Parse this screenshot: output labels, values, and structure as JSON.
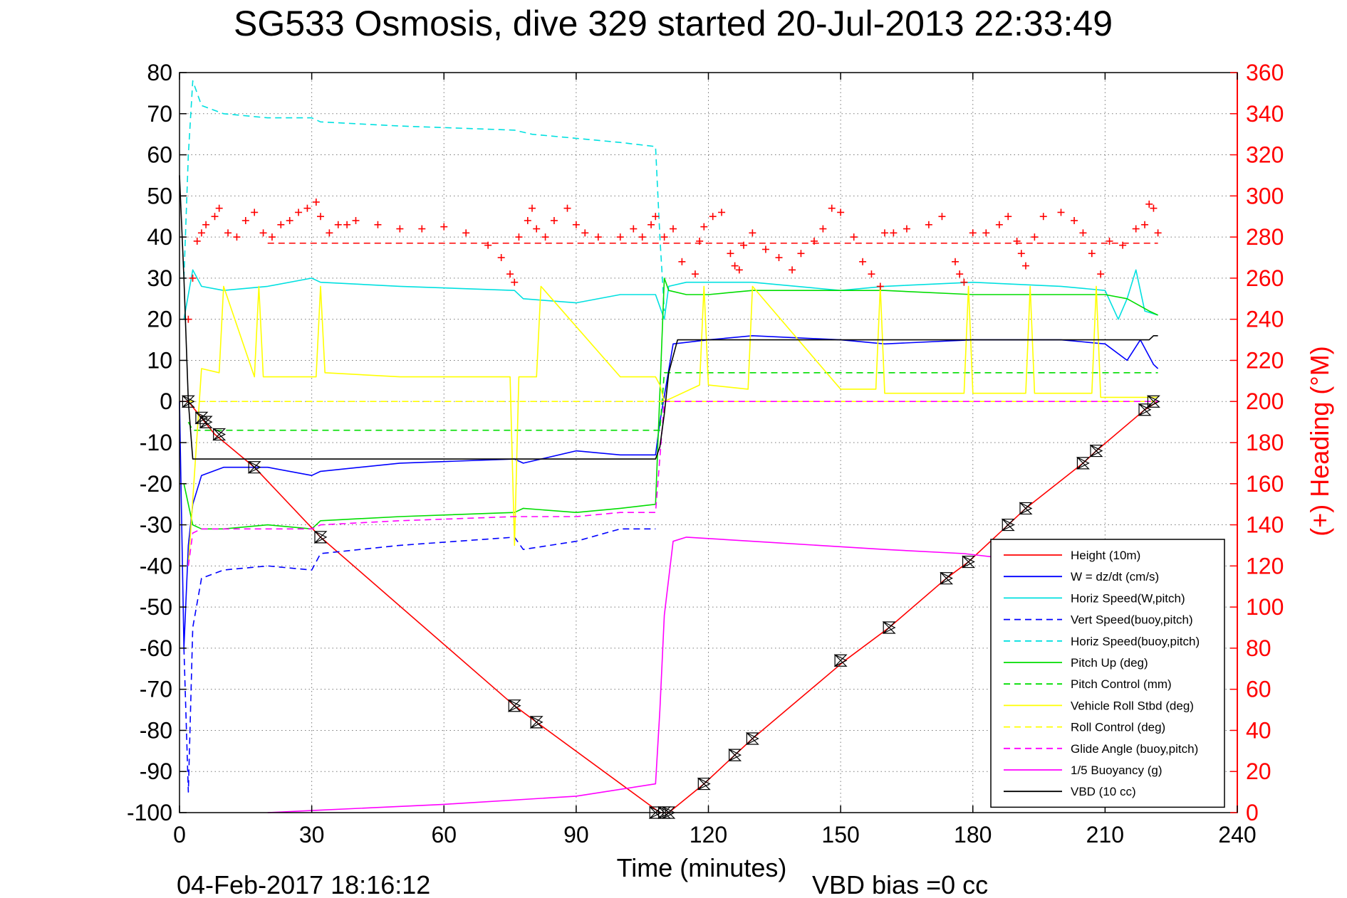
{
  "chart_data": {
    "type": "line",
    "title": "SG533 Osmosis, dive 329 started 20-Jul-2013 22:33:49",
    "xlabel": "Time (minutes)",
    "ylabel": "",
    "ylabel_right": "(+) Heading (°M)",
    "xlim": [
      0,
      240
    ],
    "ylim": [
      -100,
      80
    ],
    "ylim_right": [
      0,
      360
    ],
    "xticks": [
      "0",
      "30",
      "60",
      "90",
      "120",
      "150",
      "180",
      "210",
      "240"
    ],
    "yticks": [
      "80",
      "70",
      "60",
      "50",
      "40",
      "30",
      "20",
      "10",
      "0",
      "-10",
      "-20",
      "-30",
      "-40",
      "-50",
      "-60",
      "-70",
      "-80",
      "-90",
      "-100"
    ],
    "yticks_right": [
      "360",
      "340",
      "320",
      "300",
      "280",
      "260",
      "240",
      "220",
      "200",
      "180",
      "160",
      "140",
      "120",
      "100",
      "80",
      "60",
      "40",
      "20",
      "0"
    ],
    "grid": true,
    "legend_position": "bottom-right",
    "footer_left": "04-Feb-2017 18:16:12",
    "footer_right": "VBD bias =0 cc",
    "heading_reference": 277,
    "series": [
      {
        "name": "Height (10m)",
        "color": "#ff0000",
        "style": "solid",
        "x": [
          0,
          2,
          5,
          8,
          17,
          32,
          76,
          81,
          109,
          111,
          119,
          126,
          130,
          151,
          161,
          174,
          179,
          188,
          192,
          205,
          208,
          219,
          222
        ],
        "y": [
          0,
          0,
          -4,
          -8,
          -16,
          -33,
          -74,
          -78,
          -100,
          -100,
          -93,
          -86,
          -82,
          -63,
          -55,
          -43,
          -39,
          -30,
          -26,
          -15,
          -12,
          -2,
          0
        ]
      },
      {
        "name": "W = dz/dt (cm/s)",
        "color": "#0000ff",
        "style": "solid",
        "x": [
          0,
          1,
          2,
          3,
          5,
          10,
          20,
          30,
          32,
          50,
          76,
          78,
          90,
          100,
          108,
          109,
          112,
          120,
          130,
          150,
          160,
          180,
          200,
          210,
          215,
          218,
          221,
          222
        ],
        "y": [
          0,
          -60,
          -35,
          -25,
          -18,
          -16,
          -16,
          -18,
          -17,
          -15,
          -14,
          -15,
          -12,
          -13,
          -13,
          -5,
          14,
          15,
          16,
          15,
          14,
          15,
          15,
          14,
          10,
          15,
          9,
          8
        ]
      },
      {
        "name": "Horiz Speed(W,pitch)",
        "color": "#00e0e0",
        "style": "solid",
        "x": [
          1,
          3,
          5,
          10,
          20,
          30,
          32,
          50,
          76,
          78,
          90,
          100,
          108,
          110,
          111,
          115,
          120,
          130,
          150,
          160,
          180,
          200,
          210,
          213,
          215,
          217,
          219,
          222
        ],
        "y": [
          20,
          32,
          28,
          27,
          28,
          30,
          29,
          28,
          27,
          25,
          24,
          26,
          26,
          20,
          28,
          29,
          29,
          29,
          27,
          28,
          29,
          28,
          27,
          20,
          25,
          32,
          22,
          21
        ]
      },
      {
        "name": "Vert Speed(buoy,pitch)",
        "color": "#0000ff",
        "style": "dashed",
        "x": [
          1,
          2,
          3,
          5,
          10,
          20,
          30,
          32,
          50,
          76,
          78,
          90,
          100,
          108
        ],
        "y": [
          -60,
          -95,
          -55,
          -43,
          -41,
          -40,
          -41,
          -37,
          -35,
          -33,
          -36,
          -34,
          -31,
          -31
        ]
      },
      {
        "name": "Horiz Speed(buoy,pitch)",
        "color": "#00e0e0",
        "style": "dashed",
        "x": [
          1,
          2,
          3,
          5,
          10,
          20,
          30,
          32,
          50,
          76,
          80,
          90,
          100,
          108,
          109,
          110
        ],
        "y": [
          30,
          60,
          78,
          72,
          70,
          69,
          69,
          68,
          67,
          66,
          65,
          64,
          63,
          62,
          40,
          22
        ]
      },
      {
        "name": "Pitch Up (deg)",
        "color": "#00dd00",
        "style": "solid",
        "x": [
          1,
          3,
          5,
          10,
          20,
          30,
          32,
          50,
          76,
          78,
          90,
          100,
          108,
          110,
          111,
          115,
          120,
          130,
          150,
          160,
          180,
          200,
          210,
          215,
          220,
          222
        ],
        "y": [
          -20,
          -30,
          -31,
          -31,
          -30,
          -31,
          -29,
          -28,
          -27,
          -26,
          -27,
          -26,
          -25,
          30,
          27,
          26,
          26,
          27,
          27,
          27,
          26,
          26,
          26,
          25,
          22,
          21
        ]
      },
      {
        "name": "Pitch Control (mm)",
        "color": "#00dd00",
        "style": "dashed",
        "x": [
          2,
          3,
          30,
          108,
          109,
          110,
          112,
          222
        ],
        "y": [
          -5,
          -7,
          -7,
          -7,
          -7,
          7,
          7,
          7
        ]
      },
      {
        "name": "Vehicle Roll Stbd (deg)",
        "color": "#ffff00",
        "style": "solid",
        "x": [
          2,
          5,
          9,
          10,
          17,
          18,
          19,
          31,
          32,
          33,
          50,
          75,
          76,
          77,
          81,
          82,
          100,
          108,
          109,
          110,
          118,
          119,
          120,
          129,
          130,
          150,
          158,
          159,
          160,
          178,
          179,
          180,
          192,
          193,
          194,
          207,
          208,
          209,
          222
        ],
        "y": [
          -40,
          8,
          7,
          28,
          6,
          28,
          6,
          6,
          28,
          7,
          6,
          6,
          -35,
          6,
          6,
          28,
          6,
          6,
          4,
          0,
          4,
          28,
          4,
          3,
          28,
          3,
          3,
          28,
          2,
          2,
          28,
          2,
          2,
          28,
          2,
          2,
          28,
          1,
          1
        ]
      },
      {
        "name": "Roll Control (deg)",
        "color": "#ffff00",
        "style": "dashed",
        "x": [
          2,
          5,
          108,
          109,
          110,
          222
        ],
        "y": [
          0,
          0,
          0,
          0,
          0,
          0
        ]
      },
      {
        "name": "Glide Angle (buoy,pitch)",
        "color": "#ff00ff",
        "style": "dashed",
        "x": [
          2,
          3,
          5,
          10,
          20,
          30,
          32,
          50,
          76,
          78,
          90,
          100,
          108,
          110,
          112,
          222
        ],
        "y": [
          -40,
          -32,
          -31,
          -31,
          -31,
          -31,
          -30,
          -29,
          -28,
          -28,
          -28,
          -27,
          -27,
          0,
          0,
          0
        ]
      },
      {
        "name": "1/5 Buoyancy (g)",
        "color": "#ff00ff",
        "style": "solid",
        "x": [
          20,
          30,
          60,
          90,
          108,
          109,
          110,
          112,
          115,
          130,
          160,
          178,
          186
        ],
        "y": [
          -100,
          -99.5,
          -98,
          -96,
          -93,
          -75,
          -52,
          -34,
          -33,
          -34,
          -36,
          -37,
          -38
        ]
      },
      {
        "name": "VBD (10 cc)",
        "color": "#000000",
        "style": "solid",
        "x": [
          0,
          1,
          2,
          3,
          108,
          109,
          110,
          111,
          113,
          120,
          150,
          200,
          220,
          221,
          222
        ],
        "y": [
          55,
          30,
          0,
          -14,
          -14,
          -11,
          -3,
          7,
          15,
          15,
          15,
          15,
          15,
          16,
          16
        ]
      }
    ],
    "heading_series": {
      "name": "(+) Heading (°M)",
      "color": "#ff0000",
      "style": "plus-markers",
      "axis": "right",
      "x": [
        2,
        3,
        4,
        5,
        6,
        8,
        9,
        11,
        13,
        15,
        17,
        19,
        21,
        23,
        25,
        27,
        29,
        31,
        32,
        34,
        36,
        38,
        40,
        45,
        50,
        55,
        60,
        65,
        70,
        73,
        75,
        76,
        77,
        79,
        80,
        81,
        83,
        85,
        88,
        90,
        92,
        95,
        100,
        103,
        105,
        107,
        108,
        110,
        112,
        114,
        117,
        118,
        119,
        121,
        123,
        125,
        126,
        127,
        128,
        130,
        133,
        136,
        139,
        141,
        144,
        146,
        148,
        150,
        153,
        155,
        157,
        159,
        160,
        162,
        165,
        170,
        173,
        176,
        177,
        178,
        180,
        183,
        186,
        188,
        190,
        191,
        192,
        194,
        196,
        200,
        203,
        205,
        207,
        209,
        211,
        214,
        217,
        219,
        220,
        221,
        222
      ],
      "y": [
        240,
        260,
        278,
        282,
        286,
        290,
        294,
        282,
        280,
        288,
        292,
        282,
        280,
        286,
        288,
        292,
        294,
        297,
        290,
        282,
        286,
        286,
        288,
        286,
        284,
        284,
        285,
        282,
        276,
        270,
        262,
        258,
        280,
        288,
        294,
        284,
        280,
        288,
        294,
        286,
        282,
        280,
        280,
        284,
        280,
        286,
        290,
        280,
        284,
        268,
        262,
        278,
        285,
        290,
        292,
        272,
        266,
        264,
        276,
        282,
        274,
        270,
        264,
        272,
        278,
        284,
        294,
        292,
        280,
        268,
        262,
        256,
        282,
        282,
        284,
        286,
        290,
        268,
        262,
        258,
        282,
        282,
        286,
        290,
        278,
        272,
        266,
        280,
        290,
        292,
        288,
        282,
        272,
        262,
        278,
        276,
        284,
        286,
        296,
        294,
        282
      ]
    },
    "markers": {
      "name": "",
      "color": "#000000",
      "style": "triangle-markers",
      "x": [
        2,
        5,
        6,
        9,
        17,
        32,
        76,
        81,
        108,
        110,
        111,
        119,
        126,
        130,
        150,
        161,
        174,
        179,
        188,
        192,
        205,
        208,
        219,
        221
      ],
      "y": [
        0,
        -4,
        -5,
        -8,
        -16,
        -33,
        -74,
        -78,
        -100,
        -100,
        -100,
        -93,
        -86,
        -82,
        -63,
        -55,
        -43,
        -39,
        -30,
        -26,
        -15,
        -12,
        -2,
        0
      ]
    }
  }
}
